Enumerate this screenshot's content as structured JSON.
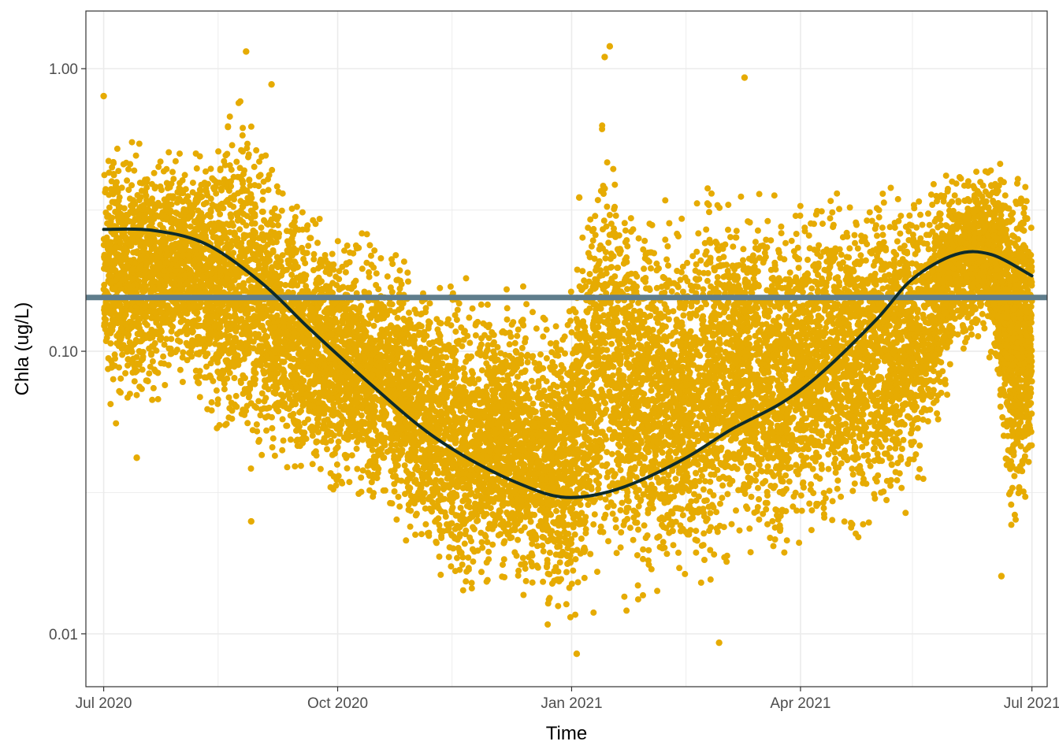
{
  "chart_data": {
    "type": "scatter",
    "title": "",
    "xlabel": "Time",
    "ylabel": "Chla (ug/L)",
    "y_scale": "log10",
    "ylim": [
      0.0065,
      1.6
    ],
    "xlim": [
      "2020-06-24",
      "2021-07-07"
    ],
    "grid": true,
    "legend": "none",
    "x_ticks": [
      {
        "date": "2020-07-01",
        "label": "Jul 2020"
      },
      {
        "date": "2020-10-01",
        "label": "Oct 2020"
      },
      {
        "date": "2021-01-01",
        "label": "Jan 2021"
      },
      {
        "date": "2021-04-01",
        "label": "Apr 2021"
      },
      {
        "date": "2021-07-01",
        "label": "Jul 2021"
      }
    ],
    "x_minor_ticks": [
      "2020-08-15",
      "2020-11-15",
      "2021-02-15",
      "2021-05-15"
    ],
    "y_ticks": [
      {
        "value": 0.01,
        "label": "0.01"
      },
      {
        "value": 0.1,
        "label": "0.10"
      },
      {
        "value": 1.0,
        "label": "1.00"
      }
    ],
    "y_minor_ticks": [
      0.0316,
      0.316
    ],
    "scatter_envelope": [
      {
        "date": "2020-07-01",
        "lo": 0.05,
        "hi": 0.7
      },
      {
        "date": "2020-07-15",
        "lo": 0.05,
        "hi": 0.65
      },
      {
        "date": "2020-07-29",
        "lo": 0.07,
        "hi": 0.6
      },
      {
        "date": "2020-08-12",
        "lo": 0.05,
        "hi": 0.62
      },
      {
        "date": "2020-08-26",
        "lo": 0.03,
        "hi": 1.0
      },
      {
        "date": "2020-09-09",
        "lo": 0.035,
        "hi": 0.45
      },
      {
        "date": "2020-09-23",
        "lo": 0.028,
        "hi": 0.35
      },
      {
        "date": "2020-10-07",
        "lo": 0.025,
        "hi": 0.3
      },
      {
        "date": "2020-10-21",
        "lo": 0.022,
        "hi": 0.3
      },
      {
        "date": "2020-11-04",
        "lo": 0.015,
        "hi": 0.22
      },
      {
        "date": "2020-11-18",
        "lo": 0.011,
        "hi": 0.2
      },
      {
        "date": "2020-12-02",
        "lo": 0.012,
        "hi": 0.2
      },
      {
        "date": "2020-12-16",
        "lo": 0.011,
        "hi": 0.18
      },
      {
        "date": "2020-12-30",
        "lo": 0.009,
        "hi": 0.18
      },
      {
        "date": "2021-01-13",
        "lo": 0.01,
        "hi": 0.9
      },
      {
        "date": "2021-01-27",
        "lo": 0.011,
        "hi": 0.4
      },
      {
        "date": "2021-02-10",
        "lo": 0.011,
        "hi": 0.35
      },
      {
        "date": "2021-02-24",
        "lo": 0.011,
        "hi": 0.5
      },
      {
        "date": "2021-03-10",
        "lo": 0.018,
        "hi": 0.45
      },
      {
        "date": "2021-03-24",
        "lo": 0.013,
        "hi": 0.4
      },
      {
        "date": "2021-04-07",
        "lo": 0.02,
        "hi": 0.45
      },
      {
        "date": "2021-04-21",
        "lo": 0.016,
        "hi": 0.5
      },
      {
        "date": "2021-05-05",
        "lo": 0.018,
        "hi": 0.5
      },
      {
        "date": "2021-05-19",
        "lo": 0.03,
        "hi": 0.45
      },
      {
        "date": "2021-06-02",
        "lo": 0.09,
        "hi": 0.5
      },
      {
        "date": "2021-06-16",
        "lo": 0.09,
        "hi": 0.5
      },
      {
        "date": "2021-06-23",
        "lo": 0.017,
        "hi": 0.55
      },
      {
        "date": "2021-07-01",
        "lo": 0.03,
        "hi": 0.5
      }
    ],
    "outliers": [
      {
        "date": "2020-07-01",
        "y": 0.8
      },
      {
        "date": "2020-08-26",
        "y": 1.15
      },
      {
        "date": "2020-09-05",
        "y": 0.88
      },
      {
        "date": "2021-01-04",
        "y": 0.35
      },
      {
        "date": "2021-01-16",
        "y": 1.2
      },
      {
        "date": "2021-01-14",
        "y": 1.1
      },
      {
        "date": "2021-03-10",
        "y": 0.93
      },
      {
        "date": "2020-07-14",
        "y": 0.042
      },
      {
        "date": "2020-08-28",
        "y": 0.025
      },
      {
        "date": "2021-01-03",
        "y": 0.0085
      },
      {
        "date": "2021-02-28",
        "y": 0.0093
      },
      {
        "date": "2021-06-19",
        "y": 0.016
      }
    ],
    "threshold": {
      "y": 0.155
    },
    "smooth_trend": [
      {
        "date": "2020-07-01",
        "y": 0.27
      },
      {
        "date": "2020-07-20",
        "y": 0.268
      },
      {
        "date": "2020-08-10",
        "y": 0.24
      },
      {
        "date": "2020-09-01",
        "y": 0.175
      },
      {
        "date": "2020-09-20",
        "y": 0.12
      },
      {
        "date": "2020-10-15",
        "y": 0.075
      },
      {
        "date": "2020-11-05",
        "y": 0.052
      },
      {
        "date": "2020-11-25",
        "y": 0.04
      },
      {
        "date": "2020-12-15",
        "y": 0.033
      },
      {
        "date": "2020-12-28",
        "y": 0.0305
      },
      {
        "date": "2021-01-10",
        "y": 0.031
      },
      {
        "date": "2021-01-25",
        "y": 0.034
      },
      {
        "date": "2021-02-15",
        "y": 0.042
      },
      {
        "date": "2021-03-05",
        "y": 0.053
      },
      {
        "date": "2021-03-25",
        "y": 0.066
      },
      {
        "date": "2021-04-10",
        "y": 0.085
      },
      {
        "date": "2021-05-01",
        "y": 0.13
      },
      {
        "date": "2021-05-15",
        "y": 0.18
      },
      {
        "date": "2021-06-01",
        "y": 0.22
      },
      {
        "date": "2021-06-15",
        "y": 0.22
      },
      {
        "date": "2021-07-01",
        "y": 0.185
      }
    ],
    "colors": {
      "points": "#E6AB02",
      "threshold": "#5F7D8C",
      "trend": "#0D2B2B",
      "grid": "#EBEBEB",
      "panel_border": "#333333"
    }
  }
}
